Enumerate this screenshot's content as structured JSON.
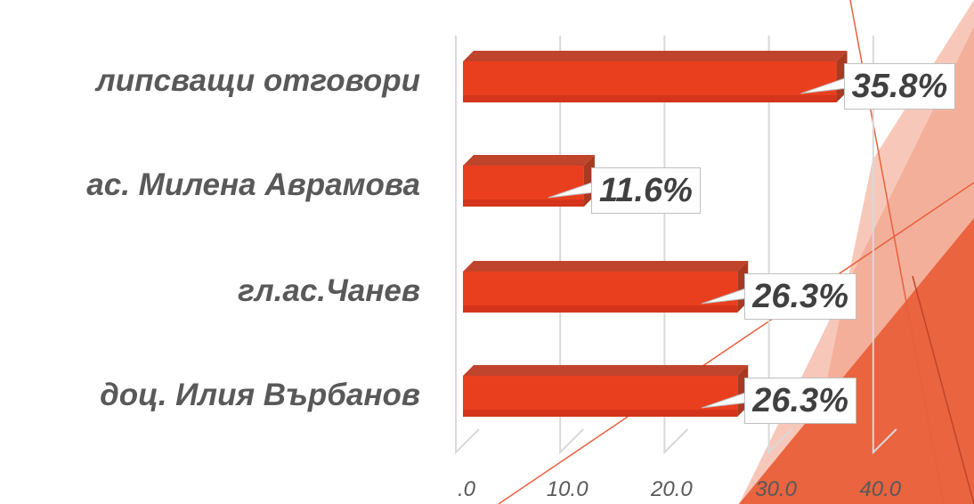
{
  "chart_data": {
    "type": "bar",
    "orientation": "horizontal",
    "categories": [
      "липсващи отговори",
      "ас. Милена Аврамова",
      "гл.ас.Чанев",
      "доц. Илия Върбанов"
    ],
    "values": [
      35.8,
      11.6,
      26.3,
      26.3
    ],
    "value_labels": [
      "35.8%",
      "11.6%",
      "26.3%",
      "26.3%"
    ],
    "x_ticks": [
      ".0",
      "10.0",
      "20.0",
      "30.0",
      "40.0"
    ],
    "xlim": [
      0,
      40
    ],
    "grid": true,
    "legend": "none",
    "colors": {
      "bar": "#ea3f1f",
      "bar_top": "#c0442c",
      "accent": "#e8603d"
    }
  }
}
